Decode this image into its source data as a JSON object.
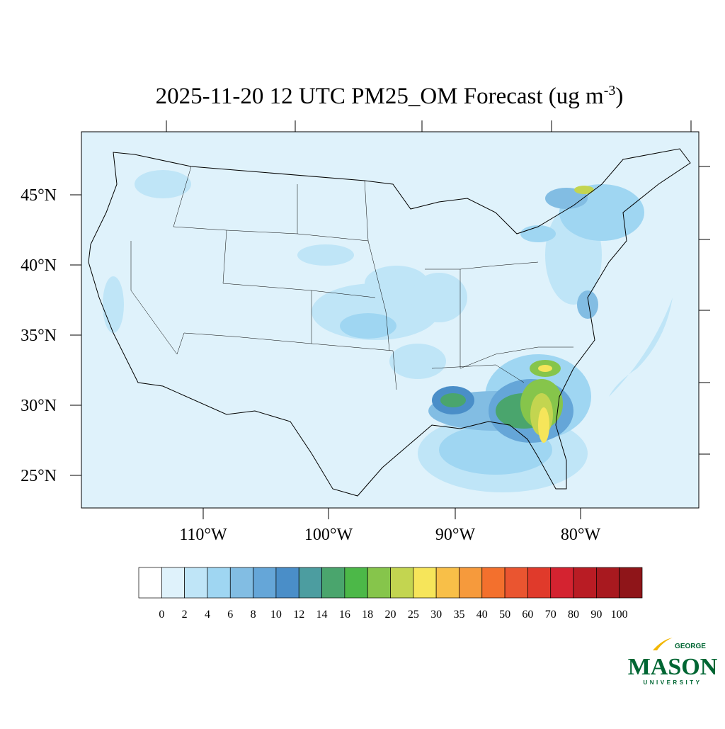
{
  "title": {
    "main": "2025-11-20 12 UTC PM25_OM Forecast (ug m",
    "superscript": "-3",
    "close": ")"
  },
  "map": {
    "lat_labels": [
      "45°N",
      "40°N",
      "35°N",
      "30°N",
      "25°N"
    ],
    "lon_labels": [
      "110°W",
      "100°W",
      "90°W",
      "80°W"
    ]
  },
  "colorbar": {
    "levels": [
      0,
      2,
      4,
      6,
      8,
      10,
      12,
      14,
      16,
      18,
      20,
      25,
      30,
      35,
      40,
      50,
      60,
      70,
      80,
      90,
      100
    ],
    "colors": [
      "#ffffff",
      "#dff2fb",
      "#bfe5f7",
      "#9fd6f2",
      "#82bde3",
      "#65a6d8",
      "#4a8ec8",
      "#4c9da0",
      "#4aa56d",
      "#4cb848",
      "#86c54b",
      "#c3d550",
      "#f6e55a",
      "#f8bf48",
      "#f69a3c",
      "#f3702d",
      "#ea5530",
      "#e03a2b",
      "#d42330",
      "#b91c24",
      "#a8191f",
      "#8f1519"
    ]
  },
  "logo": {
    "top": "GEORGE",
    "main": "MASON",
    "bottom": "UNIVERSITY"
  }
}
